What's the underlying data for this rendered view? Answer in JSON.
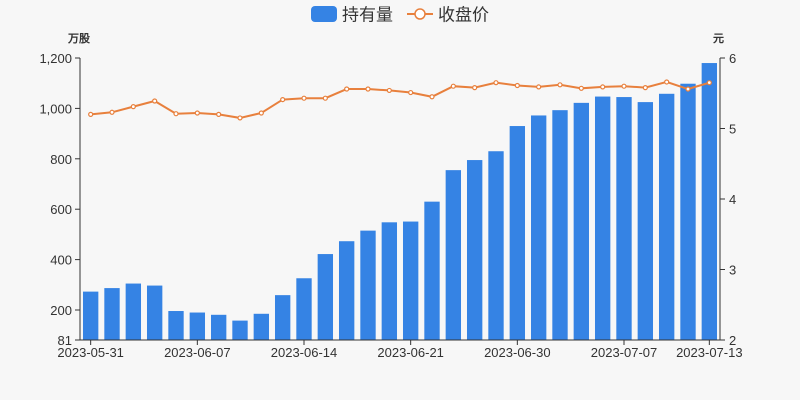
{
  "chart_data": {
    "type": "bar+line",
    "legend": {
      "placement": "top-center",
      "items": [
        {
          "label": "持有量",
          "marker": "bar",
          "color": "#3583e4"
        },
        {
          "label": "收盘价",
          "marker": "line",
          "color": "#e8803d"
        }
      ]
    },
    "left_axis": {
      "unit": "万股",
      "min": 81,
      "max": 1200,
      "ticks": [
        81,
        200,
        400,
        600,
        800,
        1000,
        1200
      ],
      "tick_labels": [
        "81",
        "200",
        "400",
        "600",
        "800",
        "1,000",
        "1,200"
      ]
    },
    "right_axis": {
      "unit": "元",
      "min": 2,
      "max": 6,
      "ticks": [
        2,
        3,
        4,
        5,
        6
      ],
      "tick_labels": [
        "2",
        "3",
        "4",
        "5",
        "6"
      ]
    },
    "x_tick_labels": [
      {
        "index": 0,
        "label": "2023-05-31"
      },
      {
        "index": 5,
        "label": "2023-06-07"
      },
      {
        "index": 10,
        "label": "2023-06-14"
      },
      {
        "index": 15,
        "label": "2023-06-21"
      },
      {
        "index": 20,
        "label": "2023-06-30"
      },
      {
        "index": 25,
        "label": "2023-07-07"
      },
      {
        "index": 29,
        "label": "2023-07-13"
      }
    ],
    "series": [
      {
        "name": "持有量",
        "type": "bar",
        "axis": "left",
        "color": "#3583e4",
        "values": [
          273,
          287,
          305,
          297,
          196,
          190,
          181,
          158,
          185,
          259,
          326,
          422,
          473,
          515,
          548,
          551,
          630,
          755,
          795,
          830,
          930,
          972,
          993,
          1022,
          1047,
          1045,
          1025,
          1058,
          1098,
          1180
        ]
      },
      {
        "name": "收盘价",
        "type": "line",
        "axis": "right",
        "color": "#e8803d",
        "values": [
          5.2,
          5.23,
          5.31,
          5.39,
          5.21,
          5.22,
          5.2,
          5.15,
          5.22,
          5.41,
          5.43,
          5.43,
          5.56,
          5.56,
          5.54,
          5.51,
          5.45,
          5.6,
          5.58,
          5.65,
          5.61,
          5.59,
          5.62,
          5.57,
          5.59,
          5.6,
          5.58,
          5.66,
          5.56,
          5.65
        ]
      }
    ],
    "grid": false
  }
}
